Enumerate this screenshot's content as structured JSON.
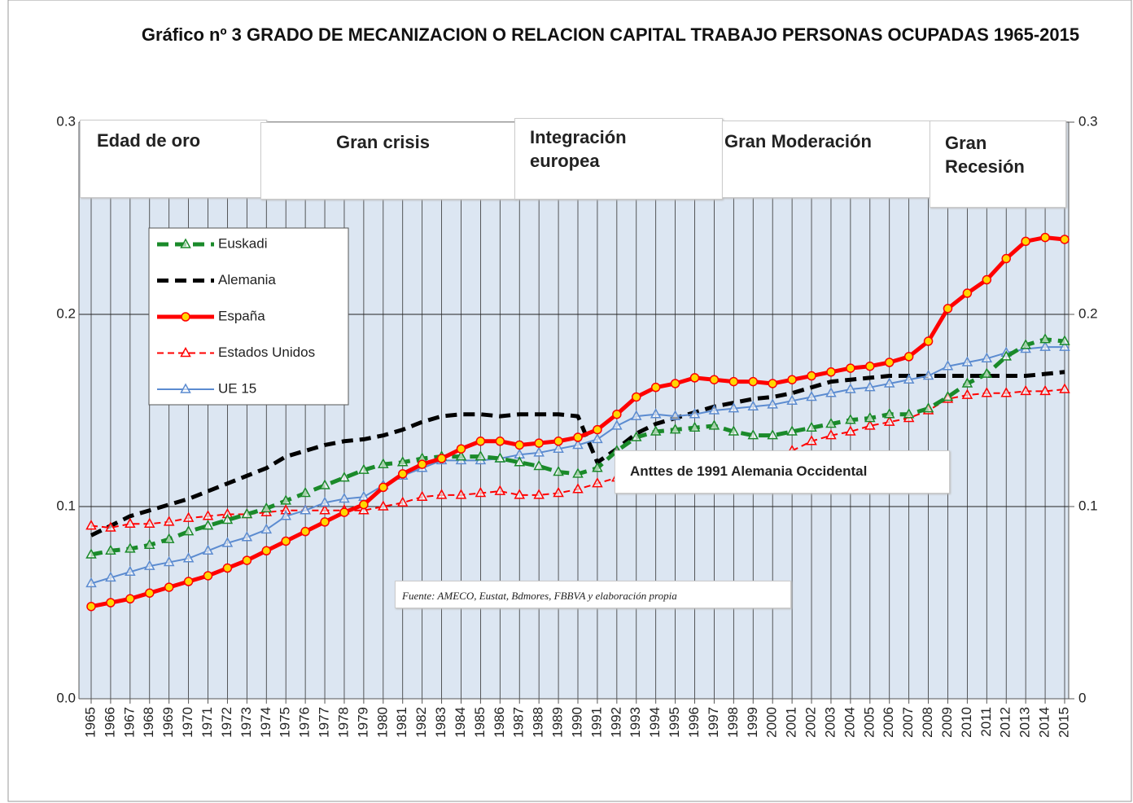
{
  "chart_data": {
    "type": "line",
    "title": "Gráfico nº 3  GRADO DE MECANIZACION  O RELACION CAPITAL  TRABAJO PERSONAS OCUPADAS  1965-2015",
    "categories": [
      "1965",
      "1966",
      "1967",
      "1968",
      "1969",
      "1970",
      "1971",
      "1972",
      "1973",
      "1974",
      "1975",
      "1976",
      "1977",
      "1978",
      "1979",
      "1980",
      "1981",
      "1982",
      "1983",
      "1984",
      "1985",
      "1986",
      "1987",
      "1988",
      "1989",
      "1990",
      "1991",
      "1992",
      "1993",
      "1994",
      "1995",
      "1996",
      "1997",
      "1998",
      "1999",
      "2000",
      "2001",
      "2002",
      "2003",
      "2004",
      "2005",
      "2006",
      "2007",
      "2008",
      "2009",
      "2010",
      "2011",
      "2012",
      "2013",
      "2014",
      "2015"
    ],
    "ylim": [
      0,
      0.3
    ],
    "yticks": [
      {
        "value": 0,
        "label": "0.0"
      },
      0.1,
      0.2,
      0.3
    ],
    "y2lim": [
      0,
      0.3
    ],
    "y2ticks": [
      0,
      0.1,
      0.2,
      0.3
    ],
    "grid": true,
    "legend": "upper left",
    "series": [
      {
        "name": "Euskadi",
        "color": "#1a8a2a",
        "line_style": "dashed",
        "marker": "triangle",
        "values": [
          0.075,
          0.077,
          0.078,
          0.08,
          0.083,
          0.087,
          0.09,
          0.093,
          0.096,
          0.099,
          0.103,
          0.107,
          0.111,
          0.115,
          0.119,
          0.122,
          0.123,
          0.125,
          0.126,
          0.126,
          0.126,
          0.125,
          0.123,
          0.121,
          0.118,
          0.117,
          0.12,
          0.129,
          0.136,
          0.139,
          0.14,
          0.141,
          0.142,
          0.139,
          0.137,
          0.137,
          0.139,
          0.141,
          0.143,
          0.145,
          0.146,
          0.148,
          0.148,
          0.151,
          0.157,
          0.164,
          0.169,
          0.178,
          0.184,
          0.187,
          0.186
        ]
      },
      {
        "name": "Alemania",
        "color": "#000000",
        "line_style": "dashed",
        "marker": "none",
        "values": [
          0.085,
          0.09,
          0.095,
          0.098,
          0.101,
          0.104,
          0.108,
          0.112,
          0.116,
          0.12,
          0.126,
          0.129,
          0.132,
          0.134,
          0.135,
          0.137,
          0.14,
          0.144,
          0.147,
          0.148,
          0.148,
          0.147,
          0.148,
          0.148,
          0.148,
          0.147,
          0.123,
          0.13,
          0.138,
          0.143,
          0.146,
          0.149,
          0.152,
          0.154,
          0.156,
          0.157,
          0.159,
          0.162,
          0.165,
          0.166,
          0.167,
          0.168,
          0.168,
          0.168,
          0.168,
          0.168,
          0.168,
          0.168,
          0.168,
          0.169,
          0.17
        ]
      },
      {
        "name": "España",
        "color": "#ff0000",
        "line_style": "solid",
        "marker": "circle",
        "values": [
          0.048,
          0.05,
          0.052,
          0.055,
          0.058,
          0.061,
          0.064,
          0.068,
          0.072,
          0.077,
          0.082,
          0.087,
          0.092,
          0.097,
          0.101,
          0.11,
          0.117,
          0.122,
          0.125,
          0.13,
          0.134,
          0.134,
          0.132,
          0.133,
          0.134,
          0.136,
          0.14,
          0.148,
          0.157,
          0.162,
          0.164,
          0.167,
          0.166,
          0.165,
          0.165,
          0.164,
          0.166,
          0.168,
          0.17,
          0.172,
          0.173,
          0.175,
          0.178,
          0.186,
          0.203,
          0.211,
          0.218,
          0.229,
          0.238,
          0.24,
          0.239
        ]
      },
      {
        "name": "Estados Unidos",
        "color": "#ff0000",
        "line_style": "dotted",
        "marker": "triangle",
        "values": [
          0.09,
          0.089,
          0.091,
          0.091,
          0.092,
          0.094,
          0.095,
          0.096,
          0.096,
          0.097,
          0.098,
          0.098,
          0.098,
          0.098,
          0.098,
          0.1,
          0.102,
          0.105,
          0.106,
          0.106,
          0.107,
          0.108,
          0.106,
          0.106,
          0.107,
          0.109,
          0.112,
          0.115,
          0.116,
          0.117,
          0.118,
          0.119,
          0.121,
          0.123,
          0.124,
          0.126,
          0.129,
          0.134,
          0.137,
          0.139,
          0.142,
          0.144,
          0.146,
          0.15,
          0.156,
          0.158,
          0.159,
          0.159,
          0.16,
          0.16,
          0.161
        ]
      },
      {
        "name": "UE 15",
        "color": "#5b8bd0",
        "line_style": "solid",
        "marker": "triangle",
        "values": [
          0.06,
          0.063,
          0.066,
          0.069,
          0.071,
          0.073,
          0.077,
          0.081,
          0.084,
          0.088,
          0.095,
          0.098,
          0.102,
          0.104,
          0.105,
          0.111,
          0.116,
          0.12,
          0.124,
          0.124,
          0.124,
          0.125,
          0.127,
          0.128,
          0.13,
          0.132,
          0.135,
          0.142,
          0.147,
          0.148,
          0.147,
          0.148,
          0.15,
          0.151,
          0.152,
          0.153,
          0.155,
          0.157,
          0.159,
          0.161,
          0.162,
          0.164,
          0.166,
          0.168,
          0.173,
          0.175,
          0.177,
          0.18,
          0.182,
          0.183,
          0.183
        ]
      }
    ],
    "annotations": [
      "Edad de oro",
      "Gran crisis",
      "Integración europea",
      "Gran Moderación",
      "Gran Recesión",
      "Anttes de 1991 Alemania Occidental",
      "Fuente: AMECO, Eustat, Bdmores, FBBVA y elaboración propia"
    ]
  }
}
